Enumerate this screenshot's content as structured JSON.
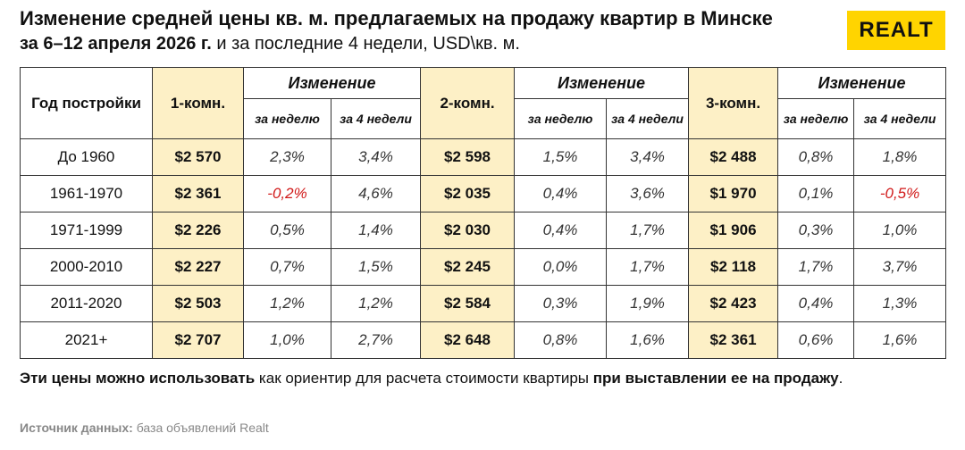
{
  "header": {
    "title": "Изменение средней цены кв. м. предлагаемых на продажу квартир в Минске",
    "subtitle_bold": "за 6–12 апреля 2026 г.",
    "subtitle_rest": " и за последние 4 недели, USD\\кв. м.",
    "logo": "REALT"
  },
  "table": {
    "year_header": "Год постройки",
    "groups": [
      {
        "name": "1-комн.",
        "change": "Изменение",
        "week": "за неделю",
        "four_weeks": "за 4 недели"
      },
      {
        "name": "2-комн.",
        "change": "Изменение",
        "week": "за неделю",
        "four_weeks": "за 4 недели"
      },
      {
        "name": "3-комн.",
        "change": "Изменение",
        "week": "за неделю",
        "four_weeks": "за 4 недели"
      }
    ],
    "rows": [
      [
        "До 1960",
        "$2 570",
        "2,3%",
        "3,4%",
        "$2 598",
        "1,5%",
        "3,4%",
        "$2 488",
        "0,8%",
        "1,8%"
      ],
      [
        "1961-1970",
        "$2 361",
        "-0,2%",
        "4,6%",
        "$2 035",
        "0,4%",
        "3,6%",
        "$1 970",
        "0,1%",
        "-0,5%"
      ],
      [
        "1971-1999",
        "$2 226",
        "0,5%",
        "1,4%",
        "$2 030",
        "0,4%",
        "1,7%",
        "$1 906",
        "0,3%",
        "1,0%"
      ],
      [
        "2000-2010",
        "$2 227",
        "0,7%",
        "1,5%",
        "$2 245",
        "0,0%",
        "1,7%",
        "$2 118",
        "1,7%",
        "3,7%"
      ],
      [
        "2011-2020",
        "$2 503",
        "1,2%",
        "1,2%",
        "$2 584",
        "0,3%",
        "1,9%",
        "$2 423",
        "0,4%",
        "1,3%"
      ],
      [
        "2021+",
        "$2 707",
        "1,0%",
        "2,7%",
        "$2 648",
        "0,8%",
        "1,6%",
        "$2 361",
        "0,6%",
        "1,6%"
      ]
    ]
  },
  "footer": {
    "note": [
      {
        "text": "Эти цены можно использовать",
        "bold": true
      },
      {
        "text": " как ориентир для расчета стоимости квартиры ",
        "bold": false
      },
      {
        "text": "при выставлении ее на продажу",
        "bold": true
      },
      {
        "text": ".",
        "bold": false
      }
    ],
    "source_label": "Источник данных:",
    "source": " база объявлений Realt"
  }
}
